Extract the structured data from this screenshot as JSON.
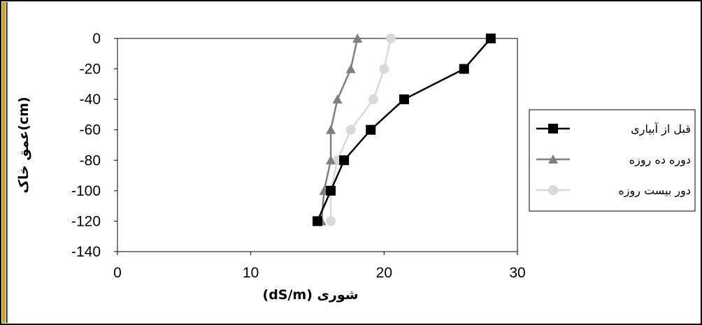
{
  "chart_data": {
    "type": "line",
    "xlabel": "(dS/m) شوری",
    "ylabel": "عمق خاک(cm)",
    "xlim": [
      0,
      30
    ],
    "ylim": [
      -140,
      0
    ],
    "x_ticks": [
      "0",
      "10",
      "20",
      "30"
    ],
    "y_ticks": [
      "0",
      "-20",
      "-40",
      "-60",
      "-80",
      "-100",
      "-120",
      "-140"
    ],
    "grid": false,
    "legend_position": "right",
    "series": [
      {
        "name": "قبل از آبیاری",
        "color": "#000000",
        "marker": "square",
        "points": [
          {
            "x": 28,
            "y": 0
          },
          {
            "x": 26,
            "y": -20
          },
          {
            "x": 21.5,
            "y": -40
          },
          {
            "x": 19,
            "y": -60
          },
          {
            "x": 17,
            "y": -80
          },
          {
            "x": 16,
            "y": -100
          },
          {
            "x": 15,
            "y": -120
          }
        ]
      },
      {
        "name": "دوره ده روزه",
        "color": "#7f7f7f",
        "marker": "triangle",
        "points": [
          {
            "x": 18,
            "y": 0
          },
          {
            "x": 17.5,
            "y": -20
          },
          {
            "x": 16.5,
            "y": -40
          },
          {
            "x": 16,
            "y": -60
          },
          {
            "x": 16,
            "y": -80
          },
          {
            "x": 15.5,
            "y": -100
          },
          {
            "x": 15.3,
            "y": -120
          }
        ]
      },
      {
        "name": "دور بیست روزه",
        "color": "#d9d9d9",
        "marker": "circle",
        "points": [
          {
            "x": 20.5,
            "y": 0
          },
          {
            "x": 20,
            "y": -20
          },
          {
            "x": 19.2,
            "y": -40
          },
          {
            "x": 17.5,
            "y": -60
          },
          {
            "x": 16.5,
            "y": -80
          },
          {
            "x": 16,
            "y": -100
          },
          {
            "x": 16,
            "y": -120
          }
        ]
      }
    ]
  },
  "colors": {
    "frame_border": "#000000",
    "left_stripe": "#d4a017",
    "axis": "#000000"
  }
}
